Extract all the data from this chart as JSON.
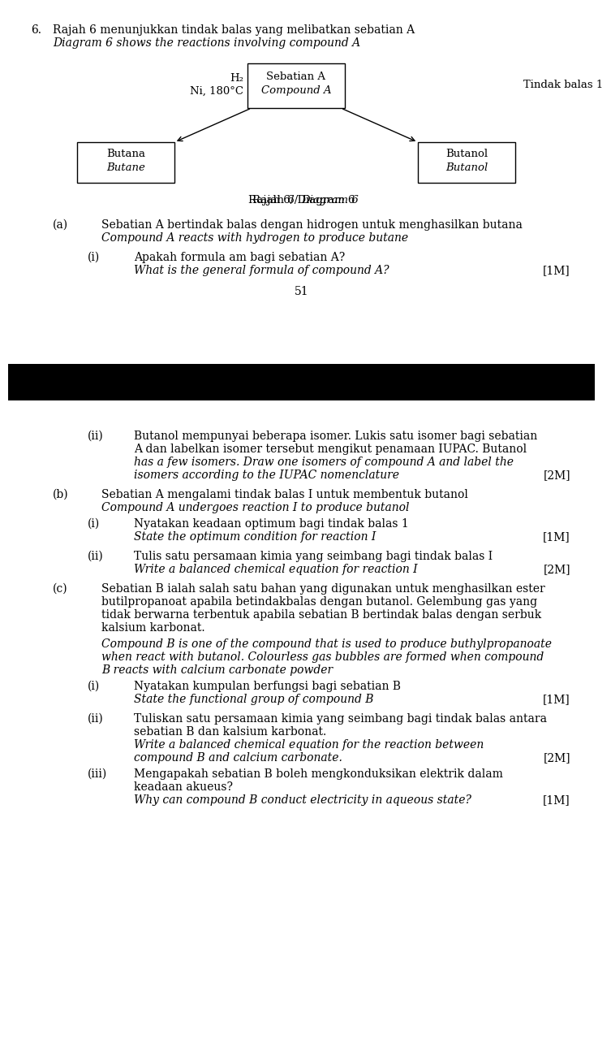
{
  "bg_color": "#ffffff",
  "text_color": "#000000",
  "question_number": "6.",
  "title_line1": "Rajah 6 menunjukkan tindak balas yang melibatkan sebatian A",
  "title_line2_italic": "Diagram 6 shows the reactions involving compound A",
  "diagram_title": "Rajah 6/ Diagram 6",
  "center_box": {
    "text_line1": "Sebatian A",
    "text_line2_italic": "Compound A"
  },
  "left_label_line1": "H₂",
  "left_label_line2": "Ni, 180°C",
  "right_label": "Tindak balas 1",
  "left_box": {
    "text_line1": "Butana",
    "text_line2_italic": "Butane"
  },
  "right_box": {
    "text_line1": "Butanol",
    "text_line2_italic": "Butanol"
  },
  "page_number": "51",
  "font_family": "DejaVu Serif",
  "fs_body": 10.0,
  "fs_diagram": 9.5,
  "q_a_normal": "Sebatian A bertindak balas dengan hidrogen untuk menghasilkan butana",
  "q_a_italic": "Compound A reacts with hydrogen to produce butane",
  "q_ai_normal": "Apakah formula am bagi sebatian A?",
  "q_ai_italic": "What is the general formula of compound A?",
  "q_ai_mark": "[1M]",
  "q_aii_lines": [
    "Butanol mempunyai beberapa isomer. Lukis satu isomer bagi sebatian",
    "A dan labelkan isomer tersebut mengikut penamaan IUPAC. Butanol"
  ],
  "q_aii_italic_lines": [
    "has a few isomers. Draw one isomers of compound A and label the",
    "isomers according to the IUPAC nomenclature"
  ],
  "q_aii_mark": "[2M]",
  "q_b_normal": "Sebatian A mengalami tindak balas I untuk membentuk butanol",
  "q_b_italic": "Compound A undergoes reaction I to produce butanol",
  "q_bi_normal": "Nyatakan keadaan optimum bagi tindak balas 1",
  "q_bi_italic": "State the optimum condition for reaction I",
  "q_bi_mark": "[1M]",
  "q_bii_normal": "Tulis satu persamaan kimia yang seimbang bagi tindak balas I",
  "q_bii_italic": "Write a balanced chemical equation for reaction I",
  "q_bii_mark": "[2M]",
  "q_c_lines": [
    "Sebatian B ialah salah satu bahan yang digunakan untuk menghasilkan ester",
    "butilpropanoat apabila betindakbalas dengan butanol. Gelembung gas yang",
    "tidak berwarna terbentuk apabila sebatian B bertindak balas dengan serbuk",
    "kalsium karbonat."
  ],
  "q_c_italic_lines": [
    "Compound B is one of the compound that is used to produce buthylpropanoate",
    "when react with butanol. Colourless gas bubbles are formed when compound",
    "B reacts with calcium carbonate powder"
  ],
  "q_ci_normal": "Nyatakan kumpulan berfungsi bagi sebatian B",
  "q_ci_italic": "State the functional group of compound B",
  "q_ci_mark": "[1M]",
  "q_cii_normal_lines": [
    "Tuliskan satu persamaan kimia yang seimbang bagi tindak balas antara",
    "sebatian B dan kalsium karbonat."
  ],
  "q_cii_italic_lines": [
    "Write a balanced chemical equation for the reaction between",
    "compound B and calcium carbonate."
  ],
  "q_cii_mark": "[2M]",
  "q_ciii_normal_lines": [
    "Mengapakah sebatian B boleh mengkonduksikan elektrik dalam",
    "keadaan akueus?"
  ],
  "q_ciii_italic": "Why can compound B conduct electricity in aqueous state?",
  "q_ciii_mark": "[1M]"
}
